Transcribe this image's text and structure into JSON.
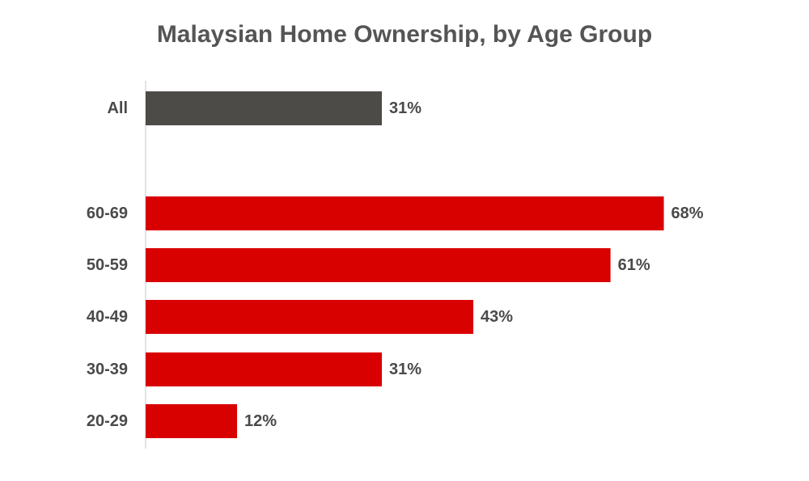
{
  "chart_data": {
    "type": "bar",
    "orientation": "horizontal",
    "title": "Malaysian Home Ownership, by Age Group",
    "xlabel": "",
    "ylabel": "",
    "grid": false,
    "legend": "none",
    "xlim": [
      0,
      100
    ],
    "categories": [
      "All",
      "60-69",
      "50-59",
      "40-49",
      "30-39",
      "20-29"
    ],
    "values": [
      31,
      68,
      61,
      43,
      31,
      12
    ],
    "data_labels": [
      "31%",
      "68%",
      "61%",
      "43%",
      "31%",
      "12%"
    ],
    "bar_colors": [
      "#4d4b47",
      "#d90000",
      "#d90000",
      "#d90000",
      "#d90000",
      "#d90000"
    ],
    "axis_color": "#e3e3e3",
    "text_color": "#4a4a4a",
    "title_color": "#555555"
  }
}
